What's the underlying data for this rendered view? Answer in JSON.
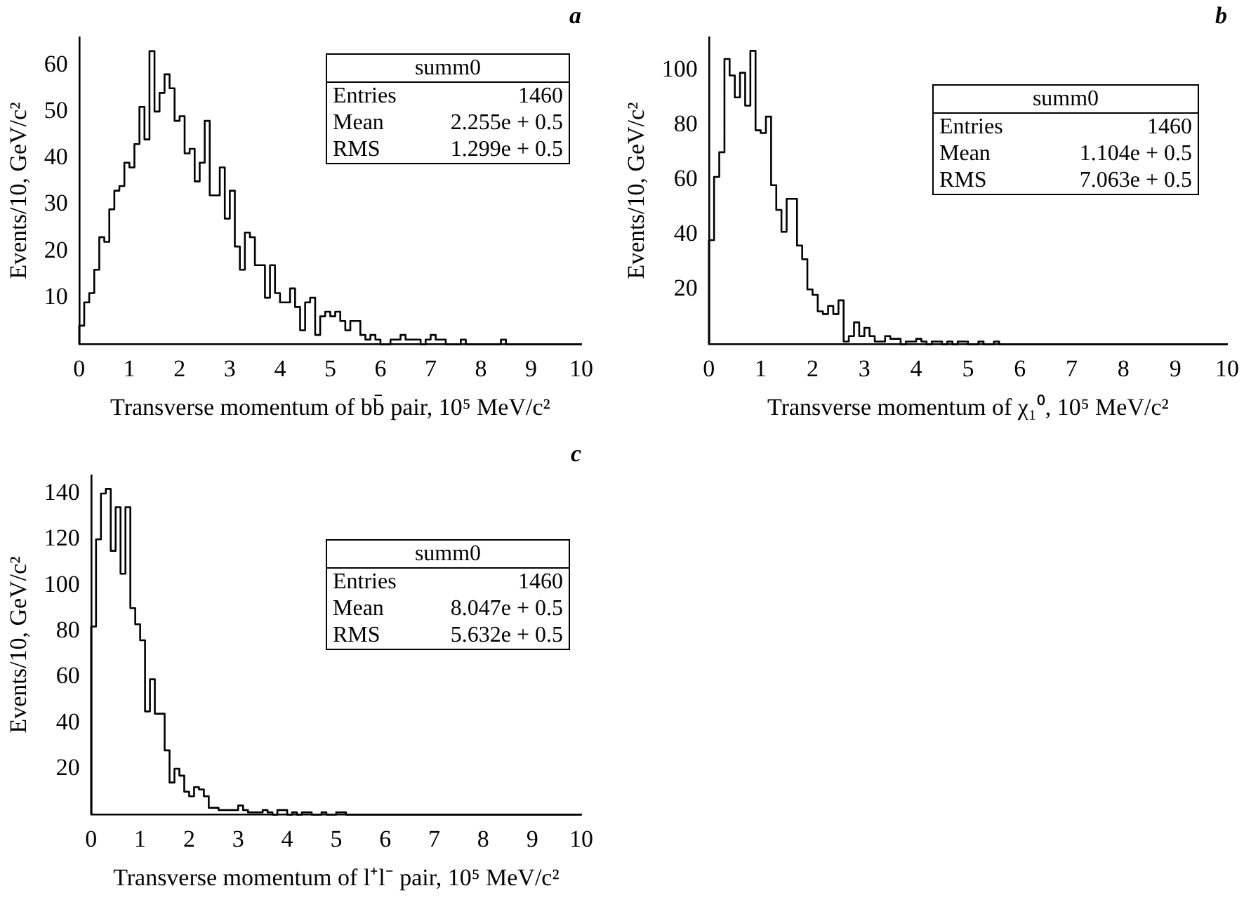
{
  "chart_data": [
    {
      "type": "histogram",
      "title": "a",
      "xlabel": "Transverse momentum of bb̄ pair, 10⁵ MeV/c²",
      "ylabel": "Events/10, GeV/c²",
      "color": "#000000",
      "bins": [
        0,
        0.1,
        0.2,
        0.3,
        0.4,
        0.5,
        0.6,
        0.7,
        0.8,
        0.9,
        1,
        1.1,
        1.2,
        1.3,
        1.4,
        1.5,
        1.6,
        1.7,
        1.8,
        1.9,
        2,
        2.1,
        2.2,
        2.3,
        2.4,
        2.5,
        2.6,
        2.7,
        2.8,
        2.9,
        3,
        3.1,
        3.2,
        3.3,
        3.4,
        3.5,
        3.6,
        3.7,
        3.8,
        3.9,
        4,
        4.1,
        4.2,
        4.3,
        4.4,
        4.5,
        4.6,
        4.7,
        4.8,
        4.9,
        5,
        5.1,
        5.2,
        5.3,
        5.4,
        5.5,
        5.6,
        5.7,
        5.8,
        5.9,
        6,
        6.1,
        6.2,
        6.3,
        6.4,
        6.5,
        6.6,
        6.7,
        6.8,
        6.9,
        7,
        7.1,
        7.2,
        7.3,
        7.4,
        7.5,
        7.6,
        7.7,
        7.8,
        7.9,
        8,
        8.1,
        8.2,
        8.3,
        8.4,
        8.5,
        8.6,
        8.7,
        8.8,
        8.9,
        9,
        9.1,
        9.2,
        9.3,
        9.4,
        9.5,
        9.6,
        9.7,
        9.8,
        9.9,
        10
      ],
      "values": [
        4,
        9,
        11,
        16,
        23,
        22,
        29,
        33,
        34,
        39,
        38,
        43,
        51,
        44,
        63,
        50,
        54,
        58,
        55,
        48,
        49,
        41,
        42,
        35,
        39,
        48,
        32,
        32,
        38,
        27,
        33,
        21,
        16,
        24,
        23,
        17,
        17,
        10,
        17,
        11,
        9,
        9,
        12,
        8,
        3,
        9,
        10,
        2,
        6,
        7,
        6,
        7,
        5,
        3,
        5,
        5,
        2,
        1,
        2,
        1,
        0,
        0,
        1,
        1,
        2,
        1,
        1,
        1,
        0,
        1,
        2,
        1,
        1,
        0,
        0,
        0,
        1,
        0,
        0,
        0,
        0,
        0,
        0,
        0,
        1,
        0,
        0,
        0,
        0,
        0,
        0,
        0,
        0,
        0,
        0,
        0,
        0,
        0,
        0,
        0
      ],
      "xlim": [
        0,
        10
      ],
      "xticks": [
        0,
        1,
        2,
        3,
        4,
        5,
        6,
        7,
        8,
        9,
        10
      ],
      "ylim": [
        0,
        66
      ],
      "yticks": [
        10,
        20,
        30,
        40,
        50,
        60
      ],
      "annotations": [
        "summ0",
        "Entries",
        "1460",
        "Mean",
        "2.255e + 0.5",
        "RMS",
        "1.299e + 0.5"
      ]
    },
    {
      "type": "histogram",
      "title": "b",
      "xlabel": "Transverse momentum of χ₁⁰, 10⁵ MeV/c²",
      "ylabel": "Events/10, GeV/c²",
      "color": "#000000",
      "bins": [
        0,
        0.1,
        0.2,
        0.3,
        0.4,
        0.5,
        0.6,
        0.7,
        0.8,
        0.9,
        1,
        1.1,
        1.2,
        1.3,
        1.4,
        1.5,
        1.6,
        1.7,
        1.8,
        1.9,
        2,
        2.1,
        2.2,
        2.3,
        2.4,
        2.5,
        2.6,
        2.7,
        2.8,
        2.9,
        3,
        3.1,
        3.2,
        3.3,
        3.4,
        3.5,
        3.6,
        3.7,
        3.8,
        3.9,
        4,
        4.1,
        4.2,
        4.3,
        4.4,
        4.5,
        4.6,
        4.7,
        4.8,
        4.9,
        5,
        5.1,
        5.2,
        5.3,
        5.4,
        5.5,
        5.6,
        5.7,
        5.8,
        5.9,
        6,
        6.1,
        6.2,
        6.3,
        6.4,
        6.5,
        6.6,
        6.7,
        6.8,
        6.9,
        7,
        7.1,
        7.2,
        7.3,
        7.4,
        7.5,
        7.6,
        7.7,
        7.8,
        7.9,
        8,
        8.1,
        8.2,
        8.3,
        8.4,
        8.5,
        8.6,
        8.7,
        8.8,
        8.9,
        9,
        9.1,
        9.2,
        9.3,
        9.4,
        9.5,
        9.6,
        9.7,
        9.8,
        9.9,
        10
      ],
      "values": [
        38,
        61,
        70,
        104,
        98,
        90,
        99,
        87,
        107,
        78,
        77,
        83,
        58,
        49,
        41,
        53,
        53,
        36,
        31,
        20,
        18,
        12,
        11,
        14,
        11,
        16,
        1,
        3,
        8,
        3,
        6,
        3,
        1,
        1,
        3,
        2,
        2,
        0,
        1,
        1,
        2,
        1,
        0,
        1,
        1,
        0,
        1,
        0,
        1,
        1,
        0,
        0,
        1,
        0,
        0,
        1,
        0,
        0,
        0,
        0,
        0,
        0,
        0,
        0,
        0,
        0,
        0,
        0,
        0,
        0,
        0,
        0,
        0,
        0,
        0,
        0,
        0,
        0,
        0,
        0,
        0,
        0,
        0,
        0,
        0,
        0,
        0,
        0,
        0,
        0,
        0,
        0,
        0,
        0,
        0,
        0,
        0,
        0,
        0,
        0
      ],
      "xlim": [
        0,
        10
      ],
      "xticks": [
        0,
        1,
        2,
        3,
        4,
        5,
        6,
        7,
        8,
        9,
        10
      ],
      "ylim": [
        0,
        112
      ],
      "yticks": [
        20,
        40,
        60,
        80,
        100
      ],
      "annotations": [
        "summ0",
        "Entries",
        "1460",
        "Mean",
        "1.104e + 0.5",
        "RMS",
        "7.063e + 0.5"
      ]
    },
    {
      "type": "histogram",
      "title": "c",
      "xlabel": "Transverse momentum of l⁺l⁻ pair, 10⁵ MeV/c²",
      "ylabel": "Events/10, GeV/c²",
      "color": "#000000",
      "bins": [
        0,
        0.1,
        0.2,
        0.3,
        0.4,
        0.5,
        0.6,
        0.7,
        0.8,
        0.9,
        1,
        1.1,
        1.2,
        1.3,
        1.4,
        1.5,
        1.6,
        1.7,
        1.8,
        1.9,
        2,
        2.1,
        2.2,
        2.3,
        2.4,
        2.5,
        2.6,
        2.7,
        2.8,
        2.9,
        3,
        3.1,
        3.2,
        3.3,
        3.4,
        3.5,
        3.6,
        3.7,
        3.8,
        3.9,
        4,
        4.1,
        4.2,
        4.3,
        4.4,
        4.5,
        4.6,
        4.7,
        4.8,
        4.9,
        5,
        5.1,
        5.2,
        5.3,
        5.4,
        5.5,
        5.6,
        5.7,
        5.8,
        5.9,
        6,
        6.1,
        6.2,
        6.3,
        6.4,
        6.5,
        6.6,
        6.7,
        6.8,
        6.9,
        7,
        7.1,
        7.2,
        7.3,
        7.4,
        7.5,
        7.6,
        7.7,
        7.8,
        7.9,
        8,
        8.1,
        8.2,
        8.3,
        8.4,
        8.5,
        8.6,
        8.7,
        8.8,
        8.9,
        9,
        9.1,
        9.2,
        9.3,
        9.4,
        9.5,
        9.6,
        9.7,
        9.8,
        9.9,
        10
      ],
      "values": [
        82,
        120,
        140,
        142,
        115,
        134,
        105,
        134,
        90,
        83,
        76,
        45,
        59,
        44,
        44,
        28,
        14,
        20,
        17,
        10,
        8,
        12,
        11,
        8,
        3,
        3,
        2,
        2,
        2,
        2,
        4,
        2,
        1,
        1,
        1,
        2,
        1,
        0,
        2,
        2,
        0,
        1,
        0,
        1,
        1,
        0,
        0,
        1,
        0,
        0,
        1,
        1,
        0,
        0,
        0,
        0,
        0,
        0,
        0,
        0,
        0,
        0,
        0,
        0,
        0,
        0,
        0,
        0,
        0,
        0,
        0,
        0,
        0,
        0,
        0,
        0,
        0,
        0,
        0,
        0,
        0,
        0,
        0,
        0,
        0,
        0,
        0,
        0,
        0,
        0,
        0,
        0,
        0,
        0,
        0,
        0,
        0,
        0,
        0,
        0
      ],
      "xlim": [
        0,
        10
      ],
      "xticks": [
        0,
        1,
        2,
        3,
        4,
        5,
        6,
        7,
        8,
        9,
        10
      ],
      "ylim": [
        0,
        148
      ],
      "yticks": [
        20,
        40,
        60,
        80,
        100,
        120,
        140
      ],
      "annotations": [
        "summ0",
        "Entries",
        "1460",
        "Mean",
        "8.047e + 0.5",
        "RMS",
        "5.632e + 0.5"
      ]
    }
  ]
}
